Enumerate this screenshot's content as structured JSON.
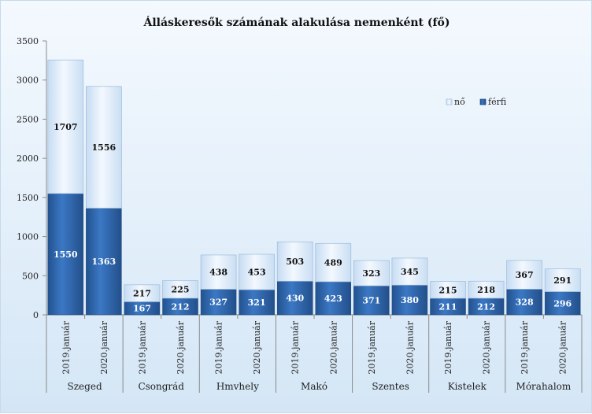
{
  "chart_data": {
    "type": "bar",
    "stacked": true,
    "title": "Álláskeresők számának alakulása nemenként (fő)",
    "xlabel": "",
    "ylabel": "",
    "ylim": [
      0,
      3500
    ],
    "yticks": [
      0,
      500,
      1000,
      1500,
      2000,
      2500,
      3000,
      3500
    ],
    "grid": false,
    "legend_position": "right",
    "groups": [
      "Szeged",
      "Csongrád",
      "Hmvhely",
      "Makó",
      "Szentes",
      "Kistelek",
      "Mórahalom"
    ],
    "categories": [
      "2019.január",
      "2020.január",
      "2019.január",
      "2020.január",
      "2019.január",
      "2020.január",
      "2019.január",
      "2020.január",
      "2019.január",
      "2020.január",
      "2019.január",
      "2020.január",
      "2019.január",
      "2020.január"
    ],
    "series": [
      {
        "name": "férfi",
        "color": "#2e64ad",
        "values": [
          1550,
          1363,
          167,
          212,
          327,
          321,
          430,
          423,
          371,
          380,
          211,
          212,
          328,
          296
        ]
      },
      {
        "name": "nő",
        "color": "#d9e8f8",
        "values": [
          1707,
          1556,
          217,
          225,
          438,
          453,
          503,
          489,
          323,
          345,
          215,
          218,
          367,
          291
        ]
      }
    ]
  }
}
